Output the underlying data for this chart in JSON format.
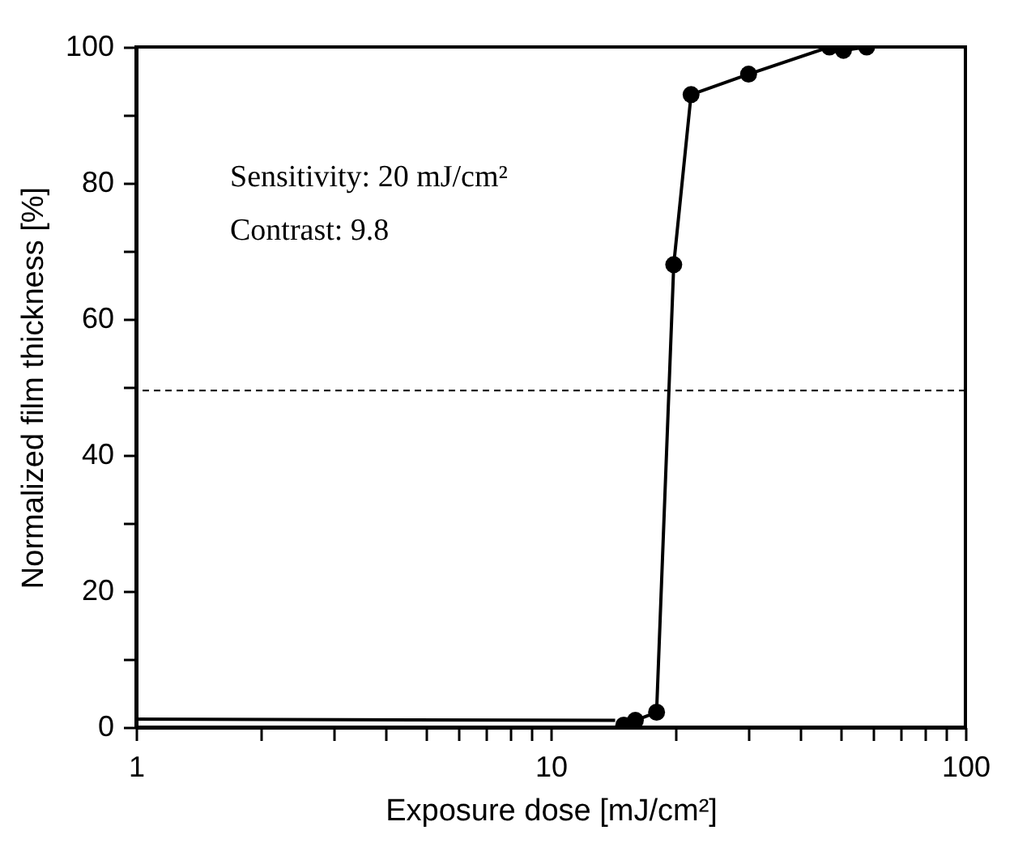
{
  "chart_data": {
    "type": "line",
    "xlabel": "Exposure dose [mJ/cm²]",
    "ylabel": "Normalized film thickness [%]",
    "annotations": [
      "Sensitivity:  20 mJ/cm²",
      "Contrast:  9.8"
    ],
    "log": "x",
    "xlim": [
      1,
      100
    ],
    "ylim": [
      0,
      100
    ],
    "xticks": [
      1,
      {
        "value": 2,
        "label": null
      },
      {
        "value": 3,
        "label": null
      },
      {
        "value": 4,
        "label": null
      },
      {
        "value": 5,
        "label": null
      },
      {
        "value": 6,
        "label": null
      },
      {
        "value": 7,
        "label": null
      },
      {
        "value": 8,
        "label": null
      },
      {
        "value": 9,
        "label": null
      },
      10,
      {
        "value": 20,
        "label": null
      },
      {
        "value": 30,
        "label": null
      },
      {
        "value": 40,
        "label": null
      },
      {
        "value": 50,
        "label": null
      },
      {
        "value": 60,
        "label": null
      },
      {
        "value": 70,
        "label": null
      },
      {
        "value": 80,
        "label": null
      },
      {
        "value": 90,
        "label": null
      },
      100
    ],
    "yticks": [
      0,
      {
        "value": 10,
        "label": null
      },
      20,
      {
        "value": 30,
        "label": null
      },
      40,
      {
        "value": 50,
        "label": null
      },
      60,
      {
        "value": 70,
        "label": null
      },
      80,
      {
        "value": 90,
        "label": null
      },
      100
    ],
    "grid": false,
    "ref_lines": [
      {
        "axis": "y",
        "value": 49.5,
        "color": "#000000",
        "line_style": "dashed"
      }
    ],
    "series": [
      {
        "color": "#000000",
        "marker": "none",
        "x": [
          1,
          14.3
        ],
        "values": [
          1.2,
          1.0
        ]
      },
      {
        "color": "#000000",
        "marker": "circle",
        "x": [
          15,
          16,
          18,
          19.8,
          21.8,
          30,
          47,
          50.8,
          57.8
        ],
        "values": [
          0.3,
          1,
          2.2,
          68,
          93,
          96,
          100,
          99.5,
          100
        ]
      }
    ]
  }
}
